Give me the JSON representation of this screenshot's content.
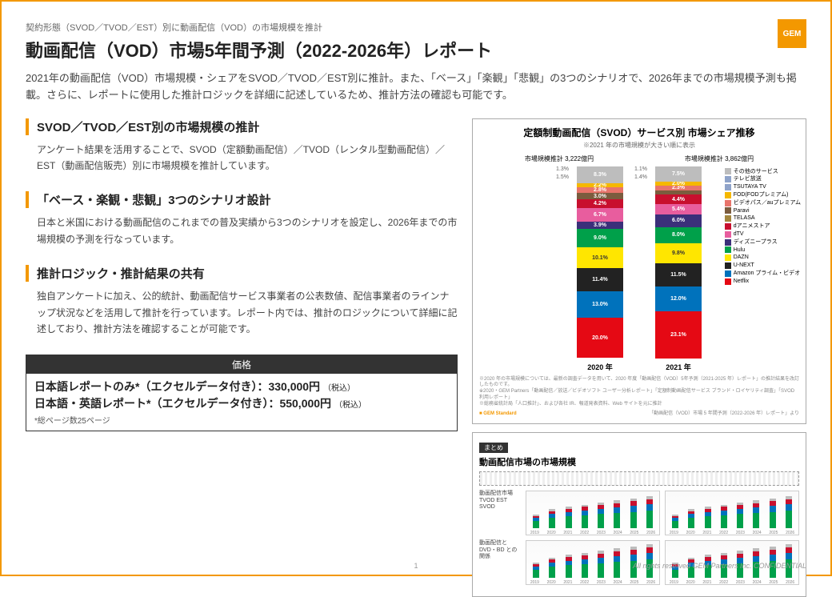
{
  "header": {
    "subtitle": "契約形態（SVOD／TVOD／EST）別に動画配信（VOD）の市場規模を推計",
    "title": "動画配信（VOD）市場5年間予測（2022-2026年）レポート",
    "intro": "2021年の動画配信（VOD）市場規模・シェアをSVOD／TVOD／EST別に推計。また、「ベース」「楽観」「悲観」の3つのシナリオで、2026年までの市場規模予測も掲載。さらに、レポートに使用した推計ロジックを詳細に記述しているため、推計方法の確認も可能です。",
    "logo": "GEM"
  },
  "sections": [
    {
      "h": "SVOD／TVOD／EST別の市場規模の推計",
      "p": "アンケート結果を活用することで、SVOD（定額動画配信）／TVOD（レンタル型動画配信）／EST（動画配信販売）別に市場規模を推計しています。"
    },
    {
      "h": "「ベース・楽観・悲観」3つのシナリオ設計",
      "p": "日本と米国における動画配信のこれまでの普及実績から3つのシナリオを設定し、2026年までの市場規模の予測を行なっています。"
    },
    {
      "h": "推計ロジック・推計結果の共有",
      "p": "独自アンケートに加え、公的統計、動画配信サービス事業者の公表数値、配信事業者のラインナップ状況などを活用して推計を行っています。レポート内では、推計のロジックについて詳細に記述しており、推計方法を確認することが可能です。"
    }
  ],
  "price": {
    "head": "価格",
    "row1": "日本語レポートのみ*（エクセルデータ付き）：330,000円",
    "row2": "日本語・英語レポート*（エクセルデータ付き）：550,000円",
    "tax": "（税込）",
    "note": "*総ページ数25ページ"
  },
  "chart1": {
    "title": "定額制動画配信（SVOD）サービス別 市場シェア推移",
    "sub": "※2021 年の市場規模が大きい順に表示",
    "left_label": "市場規模推計 3,222億円",
    "right_label": "市場規模推計 3,862億円",
    "year_a": "2020 年",
    "year_b": "2021 年",
    "side_a": "1.3%",
    "side_a2": "1.5%",
    "side_b": "1.1%",
    "side_b2": "1.4%",
    "segments_a": [
      {
        "v": 8.3,
        "c": "#bdbdbd",
        "l": "8.3%"
      },
      {
        "v": 2.2,
        "c": "#f5b800",
        "l": "2.2%"
      },
      {
        "v": 2.8,
        "c": "#e8746b",
        "l": "2.8%"
      },
      {
        "v": 3.0,
        "c": "#7b5c3e",
        "l": "3.0%"
      },
      {
        "v": 4.2,
        "c": "#c80f2e",
        "l": "4.2%"
      },
      {
        "v": 6.7,
        "c": "#e85d9e",
        "l": "6.7%"
      },
      {
        "v": 3.9,
        "c": "#3b2f7a",
        "l": "3.9%"
      },
      {
        "v": 9.0,
        "c": "#00a04a",
        "l": "9.0%"
      },
      {
        "v": 10.1,
        "c": "#ffe600",
        "l": "10.1%",
        "tc": "#333"
      },
      {
        "v": 11.4,
        "c": "#222222",
        "l": "11.4%"
      },
      {
        "v": 13.0,
        "c": "#0072bc",
        "l": "13.0%"
      },
      {
        "v": 20.0,
        "c": "#e50914",
        "l": "20.0%"
      }
    ],
    "segments_b": [
      {
        "v": 7.5,
        "c": "#bdbdbd",
        "l": "7.5%"
      },
      {
        "v": 2.0,
        "c": "#f5b800",
        "l": "2.0%"
      },
      {
        "v": 2.3,
        "c": "#e8746b",
        "l": "2.3%"
      },
      {
        "v": 2.3,
        "c": "#7b5c3e",
        "l": ""
      },
      {
        "v": 4.4,
        "c": "#c80f2e",
        "l": "4.4%"
      },
      {
        "v": 5.4,
        "c": "#e85d9e",
        "l": "5.4%"
      },
      {
        "v": 6.0,
        "c": "#3b2f7a",
        "l": "6.0%"
      },
      {
        "v": 8.0,
        "c": "#00a04a",
        "l": "8.0%"
      },
      {
        "v": 9.8,
        "c": "#ffe600",
        "l": "9.8%",
        "tc": "#333"
      },
      {
        "v": 11.5,
        "c": "#222222",
        "l": "11.5%"
      },
      {
        "v": 12.0,
        "c": "#0072bc",
        "l": "12.0%"
      },
      {
        "v": 23.1,
        "c": "#e50914",
        "l": "23.1%"
      }
    ],
    "legend": [
      {
        "c": "#bdbdbd",
        "t": "その他のサービス"
      },
      {
        "c": "#8fa3c9",
        "t": "テレビ放送"
      },
      {
        "c": "#8fa3c9",
        "t": "TSUTAYA TV"
      },
      {
        "c": "#f5b800",
        "t": "FOD(FODプレミアム)"
      },
      {
        "c": "#e8746b",
        "t": "ビデオパス／auプレミアム"
      },
      {
        "c": "#7b5c3e",
        "t": "Paravi"
      },
      {
        "c": "#a3863e",
        "t": "TELASA"
      },
      {
        "c": "#c80f2e",
        "t": "dアニメストア"
      },
      {
        "c": "#e85d9e",
        "t": "dTV"
      },
      {
        "c": "#3b2f7a",
        "t": "ディズニープラス"
      },
      {
        "c": "#00a04a",
        "t": "Hulu"
      },
      {
        "c": "#ffe600",
        "t": "DAZN"
      },
      {
        "c": "#222222",
        "t": "U-NEXT"
      },
      {
        "c": "#0072bc",
        "t": "Amazon プライム・ビデオ"
      },
      {
        "c": "#e50914",
        "t": "Netflix"
      }
    ],
    "foot1": "※2020 年の市場規模については、最新の調査データを用いて、2020 年度「動画配信（VOD）5年予測（2021-2025 年）レポート」の推計結果を改訂したものです。",
    "foot2": "※2020・GEM Partners「動画配信／放送／ビデオソフト ユーザー分析レポート」「定額制動画配信サービス ブランド・ロイヤリティ調査」「SVOD 利用レポート」",
    "foot3": "※総務省統計局「人口推計」、および各社 IR、報道発表資料、Web サイトを元に推計",
    "brand": "GEM Standard",
    "source": "「動画配信（VOD）市場 5 年間予測（2022-2026 年）レポート」より"
  },
  "chart2": {
    "tag": "まとめ",
    "title": "動画配信市場の市場規模",
    "row1_label": "動画配信市場\nTVOD\nEST\nSVOD",
    "row2_label": "動画配信と\nDVD・BD\nとの関係",
    "years": [
      "2019",
      "2020",
      "2021",
      "2022",
      "2023",
      "2024",
      "2025",
      "2026"
    ],
    "bars_a": [
      40,
      55,
      62,
      68,
      74,
      80,
      86,
      92
    ],
    "bars_b": [
      45,
      58,
      66,
      72,
      78,
      84,
      90,
      96
    ],
    "colors": {
      "top": "#c80f2e",
      "mid": "#0072bc",
      "bot": "#00a04a",
      "bot2": "#bdbdbd"
    }
  },
  "footer": {
    "page": "1",
    "right": "All rights reserved GEM Partners Inc. CONFIDENTIAL"
  }
}
